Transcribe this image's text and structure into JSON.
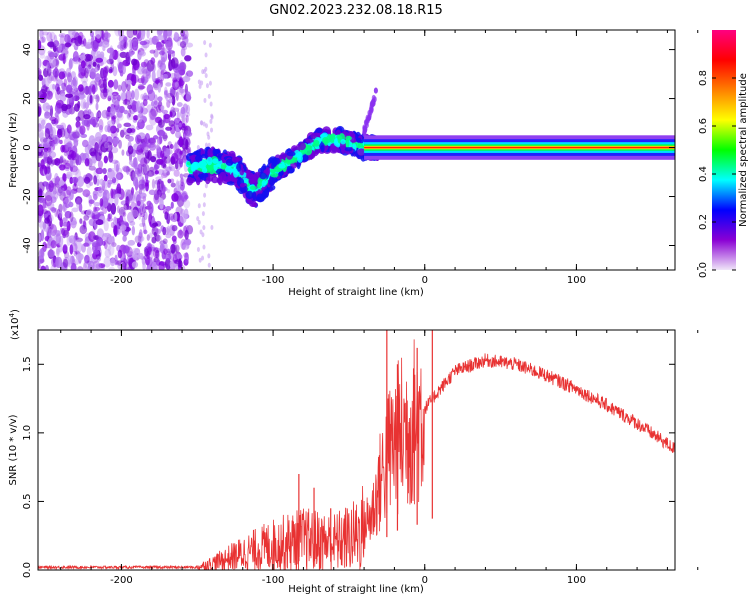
{
  "title": "GN02.2023.232.08.18.R15",
  "chart_data": [
    {
      "type": "heatmap",
      "xlabel": "Height of straight line (km)",
      "ylabel": "Frequency (Hz)",
      "xlim": [
        -255,
        165
      ],
      "ylim": [
        -50,
        48
      ],
      "xticks": [
        -200,
        -100,
        0,
        100
      ],
      "yticks": [
        -40,
        -20,
        0,
        20,
        40
      ],
      "colorbar": {
        "label": "Normalized spectral amplitude",
        "range": [
          0,
          1
        ],
        "ticks": [
          "0.0",
          "0.2",
          "0.4",
          "0.6",
          "0.8"
        ],
        "tick_values": [
          0,
          0.2,
          0.4,
          0.6,
          0.8
        ],
        "colors": [
          "#f0e6f8",
          "#8a00d4",
          "#0000ff",
          "#00ffff",
          "#00ff00",
          "#ffff00",
          "#ff8000",
          "#ff0000",
          "#ff0080"
        ]
      },
      "ridge": [
        {
          "x": -155,
          "f": -8
        },
        {
          "x": -140,
          "f": -7
        },
        {
          "x": -125,
          "f": -9
        },
        {
          "x": -112,
          "f": -18
        },
        {
          "x": -100,
          "f": -10
        },
        {
          "x": -85,
          "f": -4
        },
        {
          "x": -70,
          "f": 3
        },
        {
          "x": -55,
          "f": 3
        },
        {
          "x": -40,
          "f": 0
        },
        {
          "x": -25,
          "f": 0
        },
        {
          "x": 0,
          "f": 0
        },
        {
          "x": 165,
          "f": 0
        }
      ]
    },
    {
      "type": "line",
      "xlabel": "Height of straight line (km)",
      "ylabel": "SNR (10 * v/v)",
      "exponent_label": "(x10",
      "exponent_power": "4",
      "exponent_close": ")",
      "xlim": [
        -255,
        165
      ],
      "ylim": [
        0,
        1.75
      ],
      "xticks": [
        -200,
        -100,
        0,
        100
      ],
      "yticks": [
        "0.0",
        "0.5",
        "1.0",
        "1.5"
      ],
      "ytick_values": [
        0,
        0.5,
        1.0,
        1.5
      ],
      "series": [
        {
          "color": "#e83232",
          "envelope": [
            {
              "x": -255,
              "y": 0.02
            },
            {
              "x": -150,
              "y": 0.02
            },
            {
              "x": -140,
              "y": 0.05
            },
            {
              "x": -120,
              "y": 0.12
            },
            {
              "x": -100,
              "y": 0.18
            },
            {
              "x": -80,
              "y": 0.22
            },
            {
              "x": -60,
              "y": 0.2
            },
            {
              "x": -45,
              "y": 0.25
            },
            {
              "x": -35,
              "y": 0.4
            },
            {
              "x": -28,
              "y": 0.7
            },
            {
              "x": -22,
              "y": 0.9
            },
            {
              "x": -15,
              "y": 1.0
            },
            {
              "x": -5,
              "y": 1.1
            },
            {
              "x": 5,
              "y": 1.25
            },
            {
              "x": 20,
              "y": 1.45
            },
            {
              "x": 40,
              "y": 1.53
            },
            {
              "x": 60,
              "y": 1.5
            },
            {
              "x": 80,
              "y": 1.42
            },
            {
              "x": 100,
              "y": 1.32
            },
            {
              "x": 120,
              "y": 1.2
            },
            {
              "x": 140,
              "y": 1.07
            },
            {
              "x": 165,
              "y": 0.88
            }
          ],
          "spikes": [
            {
              "x": -83,
              "y": 0.7
            },
            {
              "x": -73,
              "y": 0.6
            },
            {
              "x": -62,
              "y": 0.45
            },
            {
              "x": -25,
              "y": 1.75
            },
            {
              "x": -18,
              "y": 1.5
            },
            {
              "x": -5,
              "y": 1.62
            },
            {
              "x": 5,
              "y": 1.75
            }
          ]
        }
      ]
    }
  ]
}
